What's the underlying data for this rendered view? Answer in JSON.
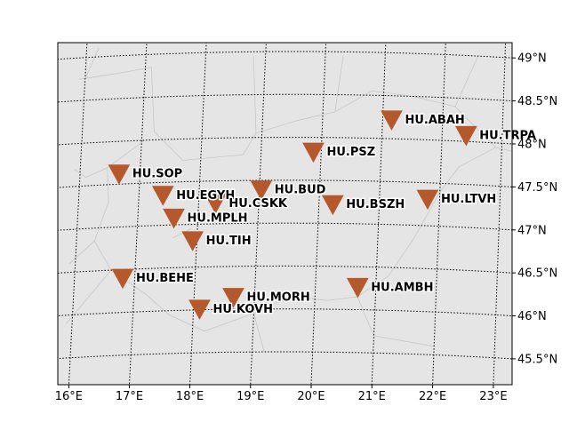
{
  "map": {
    "background_color": "#e5e5e5",
    "border_color": "#c8c8c8",
    "marker_color": "#b5582c",
    "marker_shape": "inverted-triangle",
    "lon_ticks": [
      {
        "value": 16,
        "label": "16°E"
      },
      {
        "value": 17,
        "label": "17°E"
      },
      {
        "value": 18,
        "label": "18°E"
      },
      {
        "value": 19,
        "label": "19°E"
      },
      {
        "value": 20,
        "label": "20°E"
      },
      {
        "value": 21,
        "label": "21°E"
      },
      {
        "value": 22,
        "label": "22°E"
      },
      {
        "value": 23,
        "label": "23°E"
      }
    ],
    "lat_ticks": [
      {
        "value": 49,
        "label": "49°N"
      },
      {
        "value": 48.5,
        "label": "48.5°N"
      },
      {
        "value": 48,
        "label": "48°N"
      },
      {
        "value": 47.5,
        "label": "47.5°N"
      },
      {
        "value": 47,
        "label": "47°N"
      },
      {
        "value": 46.5,
        "label": "46.5°N"
      },
      {
        "value": 46,
        "label": "46°N"
      },
      {
        "value": 45.5,
        "label": "45.5°N"
      }
    ],
    "stations": [
      {
        "name": "HU.ABAH",
        "lon": 21.15,
        "lat": 48.22
      },
      {
        "name": "HU.TRPA",
        "lon": 22.4,
        "lat": 48.07
      },
      {
        "name": "HU.PSZ",
        "lon": 19.87,
        "lat": 47.83
      },
      {
        "name": "HU.SOP",
        "lon": 16.65,
        "lat": 47.62
      },
      {
        "name": "HU.BUD",
        "lon": 19.03,
        "lat": 47.39
      },
      {
        "name": "HU.EGYH",
        "lon": 17.4,
        "lat": 47.35
      },
      {
        "name": "HU.CSKK",
        "lon": 18.28,
        "lat": 47.24
      },
      {
        "name": "HU.BSZH",
        "lon": 20.23,
        "lat": 47.22
      },
      {
        "name": "HU.LTVH",
        "lon": 21.8,
        "lat": 47.31
      },
      {
        "name": "HU.MPLH",
        "lon": 17.6,
        "lat": 47.08
      },
      {
        "name": "HU.TIH",
        "lon": 17.93,
        "lat": 46.81
      },
      {
        "name": "HU.BEHE",
        "lon": 16.8,
        "lat": 46.4
      },
      {
        "name": "HU.AMBH",
        "lon": 20.7,
        "lat": 46.26
      },
      {
        "name": "HU.MORH",
        "lon": 18.65,
        "lat": 46.14
      },
      {
        "name": "HU.KOVH",
        "lon": 18.1,
        "lat": 46.01
      }
    ]
  }
}
